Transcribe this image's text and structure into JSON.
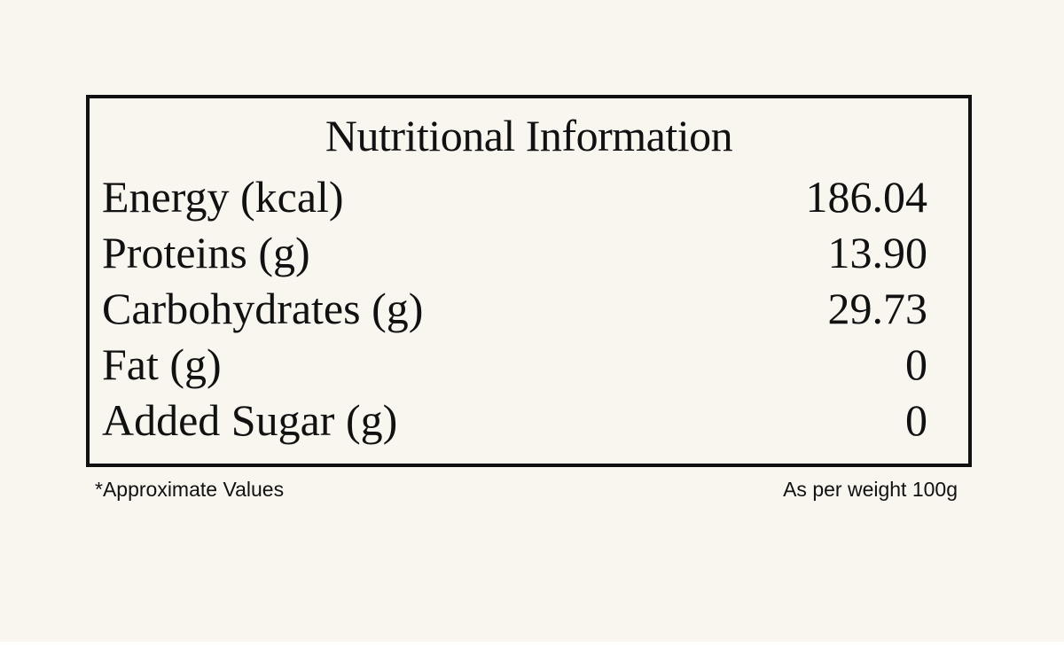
{
  "panel": {
    "title": "Nutritional Information",
    "rows": [
      {
        "label": "Energy (kcal)",
        "value": "186.04"
      },
      {
        "label": "Proteins (g)",
        "value": "13.90"
      },
      {
        "label": "Carbohydrates (g)",
        "value": "29.73"
      },
      {
        "label": "Fat (g)",
        "value": "0"
      },
      {
        "label": "Added Sugar (g)",
        "value": "0"
      }
    ]
  },
  "footer": {
    "note": "*Approximate Values",
    "basis": "As per weight 100g"
  },
  "colors": {
    "background": "#f9f6f0",
    "text": "#111111",
    "border": "#111111"
  }
}
